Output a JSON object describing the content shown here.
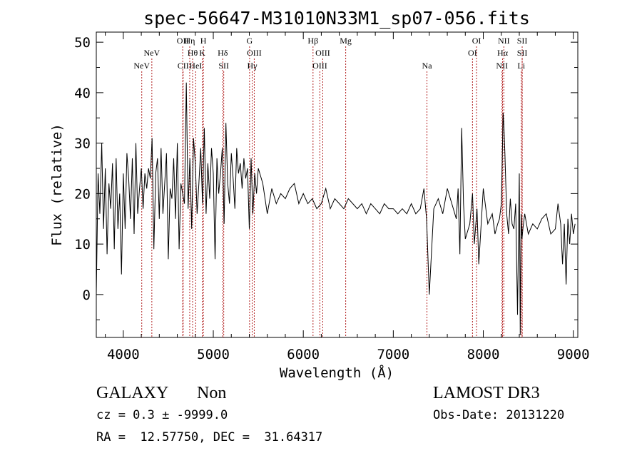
{
  "chart_data": {
    "type": "line",
    "title": "spec-56647-M31010N33M1_sp07-056.fits",
    "xlabel": "Wavelength (Å)",
    "ylabel": "Flux (relative)",
    "xlim": [
      3700,
      9050
    ],
    "ylim": [
      -8.5,
      52
    ],
    "xticks": [
      4000,
      5000,
      6000,
      7000,
      8000,
      9000
    ],
    "xtick_labels": [
      "4000",
      "5000",
      "6000",
      "7000",
      "8000",
      "9000"
    ],
    "yticks": [
      0,
      10,
      20,
      30,
      40,
      50
    ],
    "ytick_labels": [
      "0",
      "10",
      "20",
      "30",
      "40",
      "50"
    ],
    "line_color": "#000000",
    "marker_color": "#b22222",
    "series": [
      {
        "name": "flux",
        "x": [
          3700,
          3720,
          3740,
          3760,
          3780,
          3800,
          3820,
          3840,
          3860,
          3880,
          3900,
          3920,
          3940,
          3960,
          3980,
          4000,
          4020,
          4040,
          4060,
          4080,
          4100,
          4120,
          4140,
          4160,
          4180,
          4200,
          4220,
          4240,
          4260,
          4280,
          4300,
          4320,
          4340,
          4360,
          4380,
          4400,
          4420,
          4440,
          4460,
          4480,
          4500,
          4520,
          4540,
          4560,
          4580,
          4600,
          4620,
          4640,
          4660,
          4680,
          4700,
          4720,
          4740,
          4760,
          4780,
          4800,
          4820,
          4840,
          4860,
          4880,
          4900,
          4920,
          4940,
          4960,
          4980,
          5000,
          5020,
          5040,
          5060,
          5080,
          5100,
          5120,
          5140,
          5160,
          5180,
          5200,
          5220,
          5240,
          5260,
          5280,
          5300,
          5320,
          5340,
          5360,
          5380,
          5400,
          5420,
          5440,
          5460,
          5480,
          5500,
          5550,
          5600,
          5650,
          5700,
          5750,
          5800,
          5850,
          5900,
          5950,
          6000,
          6050,
          6100,
          6150,
          6200,
          6250,
          6300,
          6350,
          6400,
          6450,
          6500,
          6550,
          6600,
          6650,
          6700,
          6750,
          6800,
          6850,
          6900,
          6950,
          7000,
          7050,
          7100,
          7150,
          7200,
          7250,
          7300,
          7340,
          7370,
          7400,
          7450,
          7500,
          7550,
          7600,
          7650,
          7700,
          7720,
          7740,
          7760,
          7780,
          7800,
          7850,
          7880,
          7900,
          7930,
          7950,
          8000,
          8050,
          8100,
          8130,
          8160,
          8180,
          8200,
          8210,
          8220,
          8230,
          8240,
          8260,
          8280,
          8300,
          8320,
          8340,
          8360,
          8380,
          8400,
          8410,
          8420,
          8430,
          8440,
          8460,
          8500,
          8550,
          8600,
          8650,
          8700,
          8750,
          8800,
          8830,
          8860,
          8880,
          8900,
          8920,
          8940,
          8960,
          8980,
          9000,
          9020
        ],
        "y": [
          0,
          24,
          16,
          30,
          13,
          25,
          8,
          22,
          17,
          26,
          9,
          27,
          13,
          20,
          4,
          24,
          13,
          28,
          23,
          15,
          27,
          12,
          30,
          16,
          21,
          25,
          17,
          24,
          21,
          25,
          23,
          31,
          9,
          24,
          27,
          15,
          29,
          16,
          22,
          28,
          7,
          21,
          19,
          27,
          15,
          30,
          9,
          22,
          20,
          18,
          42,
          17,
          27,
          13,
          31,
          26,
          16,
          22,
          29,
          18,
          33,
          16,
          26,
          19,
          29,
          24,
          7,
          27,
          20,
          24,
          29,
          14,
          34,
          22,
          18,
          28,
          23,
          17,
          29,
          24,
          26,
          21,
          27,
          23,
          25,
          13,
          27,
          16,
          24,
          20,
          25,
          22,
          16,
          21,
          18,
          20,
          19,
          21,
          22,
          18,
          20,
          18,
          19,
          17,
          18,
          21,
          17,
          19,
          18,
          17,
          19,
          18,
          17,
          18,
          16,
          18,
          17,
          16,
          18,
          17,
          17,
          16,
          17,
          16,
          18,
          16,
          17,
          21,
          15,
          0,
          17,
          19,
          16,
          21,
          18,
          15,
          21,
          8,
          33,
          18,
          11,
          14,
          20,
          10,
          17,
          6,
          21,
          14,
          16,
          12,
          14,
          15,
          18,
          26,
          36,
          33,
          28,
          16,
          12,
          19,
          14,
          13,
          18,
          -4,
          24,
          -8,
          16,
          11,
          13,
          16,
          12,
          14,
          13,
          15,
          16,
          12,
          13,
          18,
          14,
          6,
          14,
          2,
          15,
          10,
          16,
          12,
          14
        ]
      }
    ],
    "line_markers": [
      {
        "name": "NeV",
        "wavelength": 4205,
        "row": 3
      },
      {
        "name": "NeV",
        "wavelength": 4317,
        "row": 2
      },
      {
        "name": "OII",
        "wavelength": 4660,
        "row": 1
      },
      {
        "name": "CII",
        "wavelength": 4665,
        "row": 3
      },
      {
        "name": "Hη",
        "wavelength": 4738,
        "row": 1
      },
      {
        "name": "Hθ",
        "wavelength": 4770,
        "row": 2
      },
      {
        "name": "HeI",
        "wavelength": 4804,
        "row": 3
      },
      {
        "name": "H",
        "wavelength": 4890,
        "row": 1
      },
      {
        "name": "K",
        "wavelength": 4878,
        "row": 2
      },
      {
        "name": "Hδ",
        "wavelength": 5105,
        "row": 2
      },
      {
        "name": "SII",
        "wavelength": 5116,
        "row": 3
      },
      {
        "name": "G",
        "wavelength": 5403,
        "row": 1
      },
      {
        "name": "OIII",
        "wavelength": 5455,
        "row": 2
      },
      {
        "name": "Hγ",
        "wavelength": 5432,
        "row": 3
      },
      {
        "name": "Hβ",
        "wavelength": 6108,
        "row": 1
      },
      {
        "name": "OIII",
        "wavelength": 6216,
        "row": 2
      },
      {
        "name": "OIII",
        "wavelength": 6184,
        "row": 3
      },
      {
        "name": "Mg",
        "wavelength": 6471,
        "row": 1
      },
      {
        "name": "Na",
        "wavelength": 7374,
        "row": 3
      },
      {
        "name": "OI",
        "wavelength": 7925,
        "row": 1
      },
      {
        "name": "OI",
        "wavelength": 7880,
        "row": 2
      },
      {
        "name": "NII",
        "wavelength": 8228,
        "row": 1
      },
      {
        "name": "Hα",
        "wavelength": 8214,
        "row": 2
      },
      {
        "name": "NII",
        "wavelength": 8208,
        "row": 3
      },
      {
        "name": "SII",
        "wavelength": 8432,
        "row": 1
      },
      {
        "name": "SII",
        "wavelength": 8432,
        "row": 2
      },
      {
        "name": "Li",
        "wavelength": 8422,
        "row": 3
      }
    ]
  },
  "info": {
    "object_class": "GALAXY",
    "subclass": "Non",
    "cz": "cz = 0.3 ± -9999.0",
    "coords": "RA =  12.57750, DEC =  31.64317",
    "survey": "LAMOST DR3",
    "obs_date": "Obs-Date: 20131220"
  }
}
